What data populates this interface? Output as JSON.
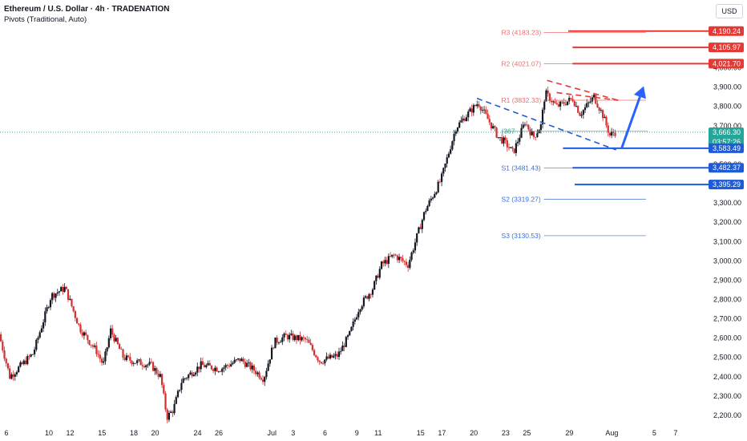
{
  "header": {
    "title": "Ethereum / U.S. Dollar · 4h · TRADENATION",
    "subtitle": "Pivots (Traditional, Auto)",
    "currency": "USD"
  },
  "colors": {
    "up": "#26a69a",
    "down": "#ef5350",
    "candle": "#131722",
    "candle_down": "#d32f2f",
    "resistance": "#e53935",
    "support": "#1e5bd6",
    "pivot_red_text": "#e57373",
    "pivot_blue_text": "#3a6fd8",
    "price_line": "#26a69a"
  },
  "chart_data": {
    "type": "candlestick",
    "ylim": [
      2150,
      4260
    ],
    "y_ticks": [
      2200,
      2300,
      2400,
      2500,
      2600,
      2700,
      2800,
      2900,
      3000,
      3100,
      3200,
      3300,
      3400,
      3500,
      3600,
      3700,
      3800,
      3900,
      4000,
      4100
    ],
    "y_tick_labels": [
      "2,200.00",
      "2,300.00",
      "2,400.00",
      "2,500.00",
      "2,600.00",
      "2,700.00",
      "2,800.00",
      "2,900.00",
      "3,000.00",
      "3,100.00",
      "3,200.00",
      "3,300.00",
      "3,400.00",
      "3,500.00",
      "3,600.00",
      "3,700.00",
      "3,800.00",
      "3,900.00",
      "4,000.00",
      "4,100.00"
    ],
    "x_ticks": [
      {
        "label": "6",
        "day": 6
      },
      {
        "label": "10",
        "day": 10
      },
      {
        "label": "12",
        "day": 12
      },
      {
        "label": "15",
        "day": 15
      },
      {
        "label": "18",
        "day": 18
      },
      {
        "label": "20",
        "day": 20
      },
      {
        "label": "24",
        "day": 24
      },
      {
        "label": "26",
        "day": 26
      },
      {
        "label": "Jul",
        "day": 31
      },
      {
        "label": "3",
        "day": 33
      },
      {
        "label": "6",
        "day": 36
      },
      {
        "label": "9",
        "day": 39
      },
      {
        "label": "11",
        "day": 41
      },
      {
        "label": "15",
        "day": 45
      },
      {
        "label": "17",
        "day": 47
      },
      {
        "label": "20",
        "day": 50
      },
      {
        "label": "23",
        "day": 53
      },
      {
        "label": "25",
        "day": 55
      },
      {
        "label": "29",
        "day": 59
      },
      {
        "label": "Aug",
        "day": 63
      },
      {
        "label": "5",
        "day": 67
      },
      {
        "label": "7",
        "day": 69
      }
    ],
    "x_range_days": [
      5.4,
      71.8
    ],
    "price_key_days": [
      [
        5.4,
        2620
      ],
      [
        6.4,
        2400
      ],
      [
        8.6,
        2520
      ],
      [
        10.3,
        2820
      ],
      [
        11.6,
        2860
      ],
      [
        13.0,
        2650
      ],
      [
        14.6,
        2530
      ],
      [
        15.2,
        2460
      ],
      [
        15.9,
        2640
      ],
      [
        17.1,
        2500
      ],
      [
        18.0,
        2480
      ],
      [
        19.7,
        2460
      ],
      [
        20.6,
        2400
      ],
      [
        21.2,
        2190
      ],
      [
        21.8,
        2230
      ],
      [
        22.6,
        2380
      ],
      [
        24.4,
        2460
      ],
      [
        26.2,
        2440
      ],
      [
        28.1,
        2490
      ],
      [
        29.5,
        2430
      ],
      [
        30.3,
        2390
      ],
      [
        31.3,
        2580
      ],
      [
        32.4,
        2610
      ],
      [
        34.3,
        2590
      ],
      [
        35.6,
        2480
      ],
      [
        37.3,
        2510
      ],
      [
        38.4,
        2620
      ],
      [
        39.3,
        2760
      ],
      [
        40.6,
        2860
      ],
      [
        41.4,
        2980
      ],
      [
        42.6,
        3030
      ],
      [
        43.9,
        2980
      ],
      [
        45.5,
        3260
      ],
      [
        47.0,
        3420
      ],
      [
        48.4,
        3690
      ],
      [
        49.5,
        3760
      ],
      [
        50.5,
        3820
      ],
      [
        52.4,
        3640
      ],
      [
        52.9,
        3620
      ],
      [
        53.8,
        3560
      ],
      [
        54.9,
        3720
      ],
      [
        55.7,
        3640
      ],
      [
        56.4,
        3700
      ],
      [
        56.8,
        3870
      ],
      [
        57.9,
        3800
      ],
      [
        59.4,
        3840
      ],
      [
        60.1,
        3760
      ],
      [
        61.4,
        3850
      ],
      [
        62.2,
        3760
      ],
      [
        62.9,
        3650
      ],
      [
        63.3,
        3666
      ]
    ],
    "pivots": [
      {
        "name": "R3",
        "label": "R3 (4183.23)",
        "value": 4183.23
      },
      {
        "name": "R2",
        "label": "R2 (4021.07)",
        "value": 4021.07
      },
      {
        "name": "R1",
        "label": "R1 (3832.33)",
        "value": 3832.33
      },
      {
        "name": "P",
        "label": "(367",
        "value": 3672
      },
      {
        "name": "S1",
        "label": "S1 (3481.43)",
        "value": 3481.43
      },
      {
        "name": "S2",
        "label": "S2 (3319.27)",
        "value": 3319.27
      },
      {
        "name": "S3",
        "label": "S3 (3130.53)",
        "value": 3130.53
      }
    ],
    "resistance_levels": [
      4190.24,
      4105.97,
      4021.7
    ],
    "support_levels": [
      3583.49,
      3482.37,
      3395.29
    ],
    "price_tags": [
      {
        "label": "4,190.24",
        "value": 4190.24,
        "kind": "resistance"
      },
      {
        "label": "4,105.97",
        "value": 4105.97,
        "kind": "resistance"
      },
      {
        "label": "4,021.70",
        "value": 4021.7,
        "kind": "resistance"
      },
      {
        "label": "3,666.30",
        "value": 3666.3,
        "kind": "last",
        "sub": "03:57:26"
      },
      {
        "label": "3,583.49",
        "value": 3583.49,
        "kind": "support"
      },
      {
        "label": "3,482.37",
        "value": 3482.37,
        "kind": "support"
      },
      {
        "label": "3,395.29",
        "value": 3395.29,
        "kind": "support"
      }
    ],
    "last_price": 3666.3,
    "countdown": "03:57:26",
    "trendlines": [
      {
        "color": "red",
        "from": [
          56.9,
          3935
        ],
        "to": [
          63.6,
          3832
        ]
      },
      {
        "color": "red",
        "from": [
          57.8,
          3872
        ],
        "to": [
          63.6,
          3832
        ]
      },
      {
        "color": "blue",
        "from": [
          50.3,
          3842
        ],
        "to": [
          63.4,
          3575
        ]
      }
    ],
    "arrow": {
      "from": [
        63.9,
        3580
      ],
      "to": [
        66.0,
        3905
      ]
    }
  }
}
